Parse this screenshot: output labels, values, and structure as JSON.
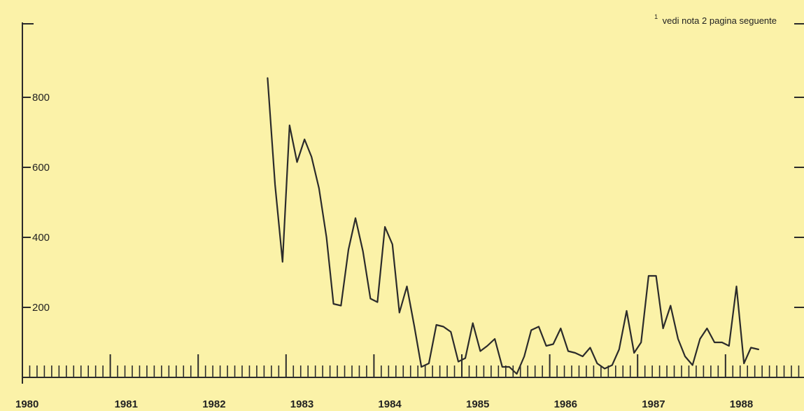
{
  "colors": {
    "background": "#fbf2a8",
    "line": "#2b2b2b",
    "axis": "#2b2b2b"
  },
  "chart_data": {
    "type": "line",
    "title": "",
    "xlabel": "",
    "ylabel": "",
    "ylim": [
      0,
      920
    ],
    "yticks": [
      200,
      400,
      600,
      800
    ],
    "ytick_labels": [
      "200",
      "400",
      "600",
      "800"
    ],
    "x_categories": [
      "1980",
      "1981",
      "1982",
      "1983",
      "1984",
      "1985",
      "1986",
      "1987",
      "1988"
    ],
    "xlim": [
      1980,
      1988.9
    ],
    "minor_ticks_per_year": 12,
    "grid": false,
    "annotation": {
      "superscript": "1",
      "text": "vedi nota 2 pagina seguente"
    },
    "series": [
      {
        "x": [
          1982.79,
          1982.875,
          1982.96,
          1983.04,
          1983.125,
          1983.21,
          1983.29,
          1983.375,
          1983.46,
          1983.54,
          1983.625,
          1983.71,
          1983.79,
          1983.875,
          1983.96,
          1984.04,
          1984.125,
          1984.21,
          1984.29,
          1984.375,
          1984.46,
          1984.54,
          1984.625,
          1984.71,
          1984.79,
          1984.875,
          1984.96,
          1985.04,
          1985.125,
          1985.21,
          1985.29,
          1985.375,
          1985.46,
          1985.54,
          1985.625,
          1985.71,
          1985.79,
          1985.875,
          1985.96,
          1986.04,
          1986.125,
          1986.21,
          1986.29,
          1986.375,
          1986.46,
          1986.54,
          1986.625,
          1986.71,
          1986.79,
          1986.875,
          1986.96,
          1987.04,
          1987.125,
          1987.21,
          1987.29,
          1987.375,
          1987.46,
          1987.54,
          1987.625,
          1987.71,
          1987.79,
          1987.875,
          1987.96,
          1988.04,
          1988.125,
          1988.21,
          1988.29,
          1988.375
        ],
        "values": [
          855,
          550,
          330,
          720,
          615,
          680,
          630,
          540,
          400,
          210,
          205,
          365,
          455,
          360,
          225,
          215,
          430,
          380,
          185,
          260,
          145,
          30,
          40,
          150,
          145,
          130,
          45,
          55,
          155,
          75,
          90,
          110,
          30,
          30,
          10,
          60,
          135,
          145,
          90,
          95,
          140,
          75,
          70,
          60,
          85,
          40,
          25,
          35,
          80,
          190,
          70,
          100,
          290,
          290,
          140,
          205,
          110,
          60,
          35,
          110,
          140,
          100,
          100,
          90,
          260,
          40,
          85,
          80
        ]
      }
    ]
  }
}
